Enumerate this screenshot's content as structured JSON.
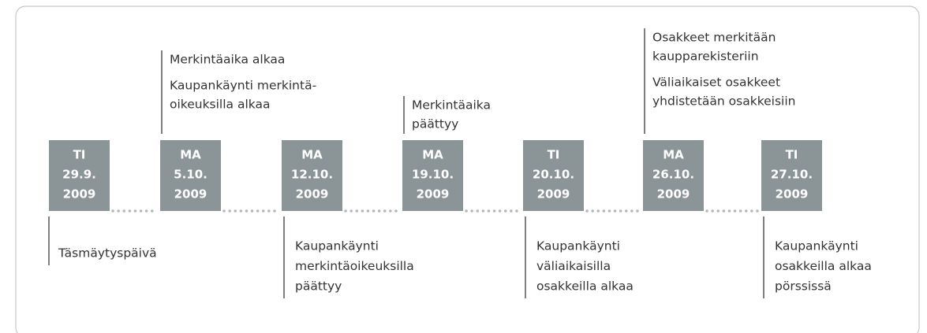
{
  "milestones": [
    {
      "day": "TI",
      "date": "29.9.",
      "year": "2009",
      "above": [],
      "below": [
        [
          "Täsmäytyspäivä"
        ]
      ]
    },
    {
      "day": "MA",
      "date": "5.10.",
      "year": "2009",
      "above": [
        [
          "Merkintäaika alkaa"
        ],
        [
          "Kaupankäynti merkintä-",
          "oikeuksilla alkaa"
        ]
      ],
      "below": []
    },
    {
      "day": "MA",
      "date": "12.10.",
      "year": "2009",
      "above": [],
      "below": [
        [
          "Kaupankäynti",
          "merkintäoikeuksilla",
          "päättyy"
        ]
      ]
    },
    {
      "day": "MA",
      "date": "19.10.",
      "year": "2009",
      "above": [
        [
          "Merkintäaika",
          "päättyy"
        ]
      ],
      "below": []
    },
    {
      "day": "TI",
      "date": "20.10.",
      "year": "2009",
      "above": [],
      "below": [
        [
          "Kaupankäynti",
          "väliaikaisilla",
          "osakkeilla alkaa"
        ]
      ]
    },
    {
      "day": "MA",
      "date": "26.10.",
      "year": "2009",
      "above": [
        [
          "Osakkeet merkitään",
          "kaupparekisteriin"
        ],
        [
          "Väliaikaiset osakkeet",
          "yhdistetään osakkeisiin"
        ]
      ],
      "below": []
    },
    {
      "day": "TI",
      "date": "27.10.",
      "year": "2009",
      "above": [],
      "below": [
        [
          "Kaupankäynti",
          "osakkeilla alkaa",
          "pörssissä"
        ]
      ]
    }
  ]
}
